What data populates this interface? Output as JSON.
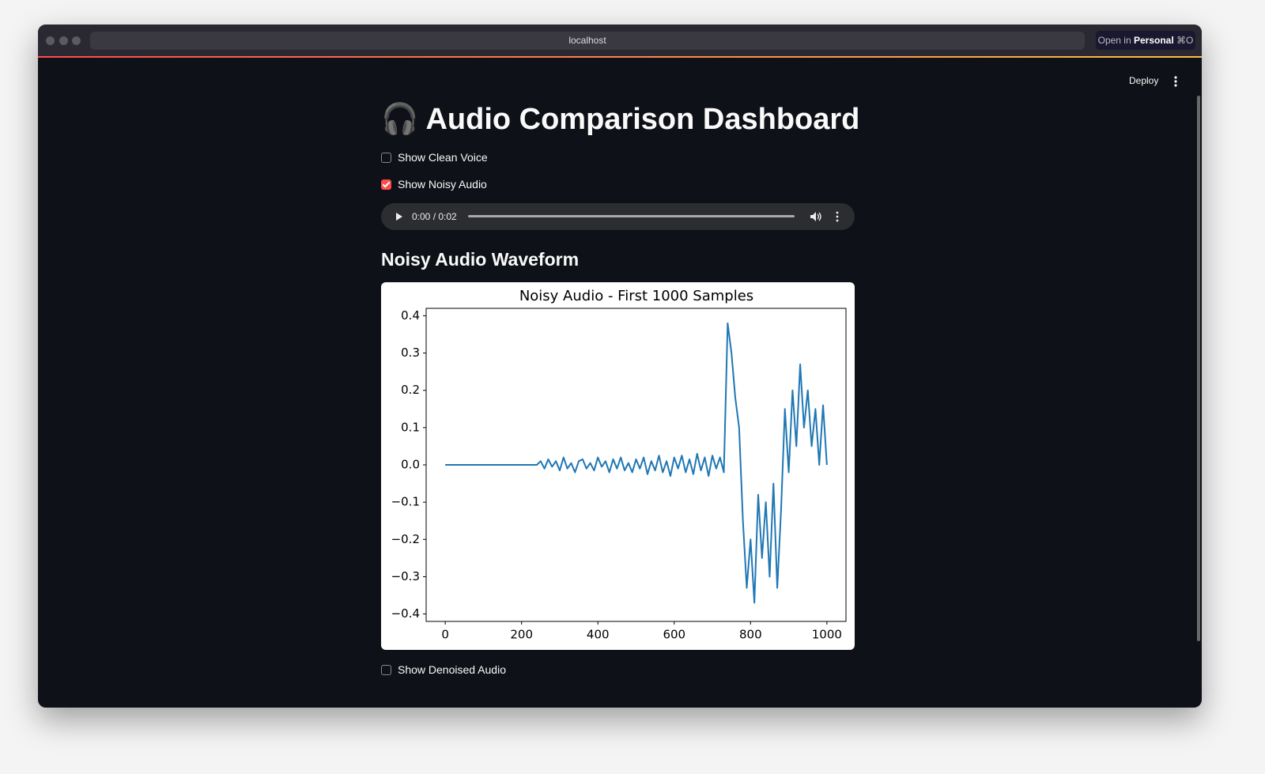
{
  "browser": {
    "url": "localhost",
    "open_in": "Open in",
    "profile": "Personal",
    "shortcut": "⌘O"
  },
  "header": {
    "deploy": "Deploy"
  },
  "title": "🎧 Audio Comparison Dashboard",
  "checkboxes": [
    {
      "label": "Show Clean Voice",
      "checked": false
    },
    {
      "label": "Show Noisy Audio",
      "checked": true
    },
    {
      "label": "Show Denoised Audio",
      "checked": false
    }
  ],
  "audio": {
    "time": "0:00 / 0:02"
  },
  "subheader": "Noisy Audio Waveform",
  "chart_data": {
    "type": "line",
    "title": "Noisy Audio - First 1000 Samples",
    "color": "#1f77b4",
    "x": [
      0,
      10,
      20,
      30,
      40,
      50,
      60,
      70,
      80,
      90,
      100,
      110,
      120,
      130,
      140,
      150,
      160,
      170,
      180,
      190,
      200,
      210,
      220,
      230,
      240,
      250,
      260,
      270,
      280,
      290,
      300,
      310,
      320,
      330,
      340,
      350,
      360,
      370,
      380,
      390,
      400,
      410,
      420,
      430,
      440,
      450,
      460,
      470,
      480,
      490,
      500,
      510,
      520,
      530,
      540,
      550,
      560,
      570,
      580,
      590,
      600,
      610,
      620,
      630,
      640,
      650,
      660,
      670,
      680,
      690,
      700,
      710,
      720,
      730,
      740,
      750,
      760,
      770,
      780,
      790,
      800,
      810,
      820,
      830,
      840,
      850,
      860,
      870,
      880,
      890,
      900,
      910,
      920,
      930,
      940,
      950,
      960,
      970,
      980,
      990,
      1000
    ],
    "values": [
      0,
      0,
      0,
      0,
      0,
      0,
      0,
      0,
      0,
      0,
      0,
      0,
      0,
      0,
      0,
      0,
      0,
      0,
      0,
      0,
      0,
      0,
      0,
      0,
      0,
      0.01,
      -0.01,
      0.015,
      -0.005,
      0.01,
      -0.015,
      0.02,
      -0.01,
      0.005,
      -0.02,
      0.01,
      0.015,
      -0.01,
      0.005,
      -0.015,
      0.02,
      -0.005,
      0.01,
      -0.02,
      0.015,
      -0.01,
      0.02,
      -0.015,
      0.005,
      -0.02,
      0.015,
      -0.01,
      0.02,
      -0.025,
      0.01,
      -0.015,
      0.025,
      -0.02,
      0.01,
      -0.03,
      0.02,
      -0.01,
      0.025,
      -0.02,
      0.015,
      -0.025,
      0.03,
      -0.015,
      0.02,
      -0.03,
      0.025,
      -0.01,
      0.02,
      -0.02,
      0.38,
      0.3,
      0.18,
      0.1,
      -0.15,
      -0.33,
      -0.2,
      -0.37,
      -0.08,
      -0.25,
      -0.1,
      -0.3,
      -0.05,
      -0.33,
      -0.12,
      0.15,
      -0.02,
      0.2,
      0.05,
      0.27,
      0.1,
      0.2,
      0.05,
      0.15,
      0.0,
      0.16,
      0.0
    ],
    "xlim": [
      -50,
      1050
    ],
    "ylim": [
      -0.42,
      0.42
    ],
    "xticks": [
      0,
      200,
      400,
      600,
      800,
      1000
    ],
    "yticks": [
      {
        "value": -0.4,
        "label": "−0.4"
      },
      {
        "value": -0.3,
        "label": "−0.3"
      },
      {
        "value": -0.2,
        "label": "−0.2"
      },
      {
        "value": -0.1,
        "label": "−0.1"
      },
      {
        "value": 0,
        "label": "0.0"
      },
      0.1,
      0.2,
      0.3,
      0.4
    ]
  }
}
